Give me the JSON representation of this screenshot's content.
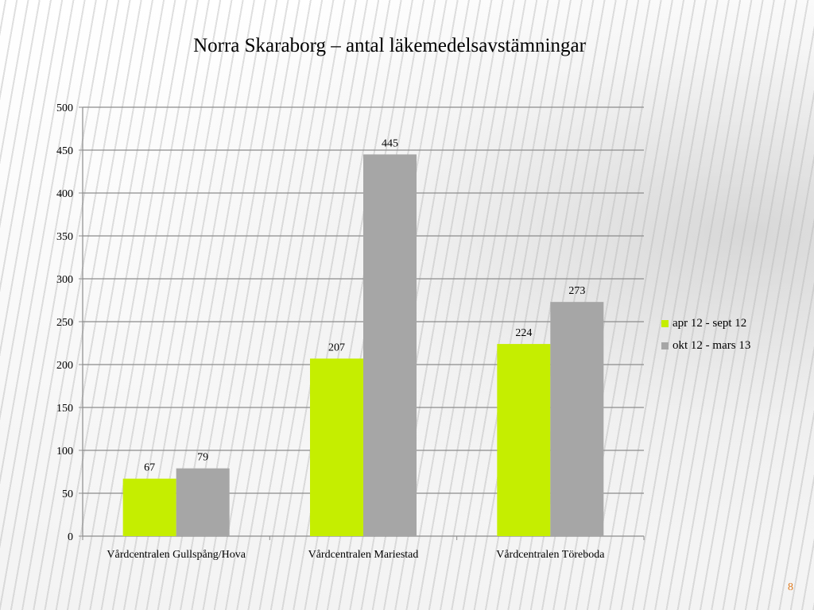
{
  "slide": {
    "page_number": "8"
  },
  "chart_data": {
    "type": "bar",
    "title": "Norra Skaraborg – antal läkemedelsavstämningar",
    "xlabel": "",
    "ylabel": "",
    "categories": [
      "Vårdcentralen Gullspång/Hova",
      "Vårdcentralen Mariestad",
      "Vårdcentralen Töreboda"
    ],
    "series": [
      {
        "name": "apr 12 - sept 12",
        "values": [
          67,
          207,
          224
        ],
        "color": "#c5ee00"
      },
      {
        "name": "okt 12 - mars 13",
        "values": [
          79,
          445,
          273
        ],
        "color": "#a6a6a6"
      }
    ],
    "ylim": [
      0,
      500
    ],
    "yticks": [
      0,
      50,
      100,
      150,
      200,
      250,
      300,
      350,
      400,
      450,
      500
    ],
    "grid": true,
    "legend": "right",
    "data_labels": true
  }
}
